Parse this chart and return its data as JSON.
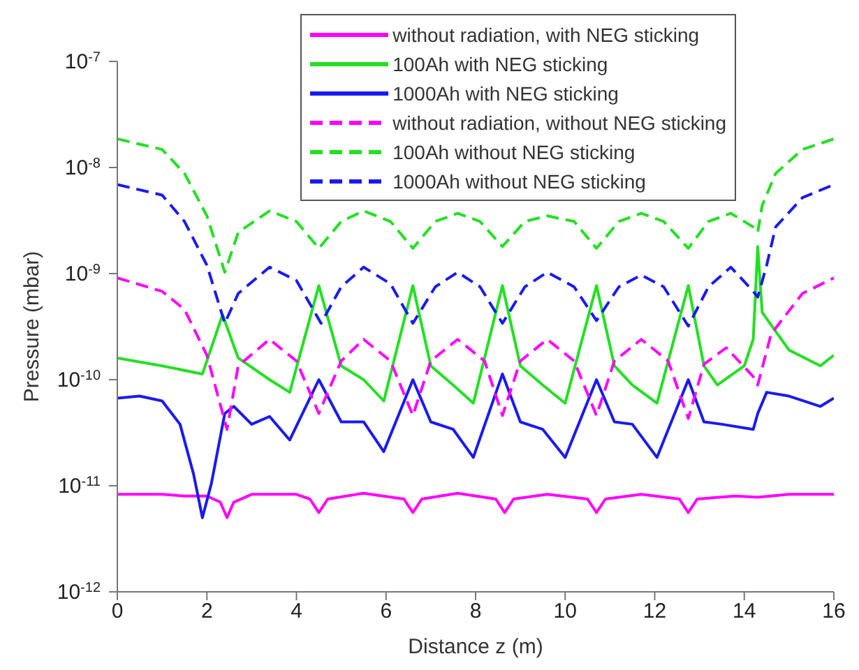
{
  "chart_data": {
    "type": "line",
    "xlabel": "Distance z (m)",
    "ylabel": "Pressure (mbar)",
    "log": "y",
    "legend": "top right",
    "xlim": [
      0,
      16
    ],
    "xticks": [
      0,
      2,
      4,
      6,
      8,
      10,
      12,
      14,
      16
    ],
    "ylim": [
      1e-12,
      1e-07
    ],
    "yticks": [
      {
        "value": 1e-12,
        "label": "10$^{-12}$"
      },
      {
        "value": 1e-11,
        "label": "10$^{-11}$"
      },
      {
        "value": 1e-10,
        "label": "10$^{-10}$"
      },
      {
        "value": 1e-09,
        "label": "10$^{-9}$"
      },
      {
        "value": 1e-08,
        "label": "10$^{-8}$"
      },
      {
        "value": 1e-07,
        "label": "10$^{-7}$"
      }
    ],
    "series": [
      {
        "name": "without radiation, with NEG sticking",
        "color": "#ff00ff",
        "line_style": "solid",
        "x": [
          0,
          1,
          1.5,
          2.0,
          2.3,
          2.45,
          2.6,
          3,
          4,
          4.3,
          4.5,
          4.7,
          5.5,
          6.4,
          6.6,
          6.8,
          7.6,
          8.45,
          8.65,
          8.85,
          9.6,
          10.5,
          10.7,
          10.9,
          11.7,
          12.55,
          12.75,
          12.95,
          13.8,
          14.3,
          15,
          16
        ],
        "values": [
          8.3e-12,
          8.3e-12,
          8e-12,
          8e-12,
          7e-12,
          5e-12,
          7e-12,
          8.3e-12,
          8.3e-12,
          7.5e-12,
          5.6e-12,
          7.5e-12,
          8.5e-12,
          7.5e-12,
          5.6e-12,
          7.5e-12,
          8.5e-12,
          7.5e-12,
          5.6e-12,
          7.5e-12,
          8.3e-12,
          7.5e-12,
          5.6e-12,
          7.5e-12,
          8.3e-12,
          7.5e-12,
          5.6e-12,
          7.5e-12,
          8e-12,
          7.8e-12,
          8.3e-12,
          8.3e-12
        ]
      },
      {
        "name": "100Ah with NEG sticking",
        "color": "#22e022",
        "line_style": "solid",
        "x": [
          0,
          1,
          1.9,
          2.35,
          2.7,
          3.4,
          3.85,
          4.5,
          5,
          5.5,
          5.95,
          6.6,
          7,
          7.5,
          7.95,
          8.6,
          9,
          9.5,
          10,
          10.7,
          11.1,
          11.5,
          12.05,
          12.75,
          13.1,
          13.4,
          14,
          14.2,
          14.3,
          14.4,
          15,
          15.7,
          16
        ],
        "values": [
          1.6e-10,
          1.35e-10,
          1.13e-10,
          4.1e-10,
          1.6e-10,
          1e-10,
          7.6e-11,
          7.7e-10,
          1.35e-10,
          1e-10,
          6.3e-11,
          7.7e-10,
          1.35e-10,
          8.9e-11,
          6e-11,
          7.7e-10,
          1.35e-10,
          8.9e-11,
          6e-11,
          7.7e-10,
          1.35e-10,
          8.9e-11,
          6e-11,
          7.7e-10,
          1.35e-10,
          8.9e-11,
          1.35e-10,
          2.4e-10,
          1.8e-09,
          4.3e-10,
          1.9e-10,
          1.35e-10,
          1.7e-10
        ]
      },
      {
        "name": "1000Ah with NEG sticking",
        "color": "#1a1af0",
        "line_style": "solid",
        "x": [
          0,
          0.5,
          1,
          1.4,
          1.7,
          1.9,
          2.1,
          2.4,
          2.6,
          3,
          3.4,
          3.85,
          4.5,
          5,
          5.5,
          5.95,
          6.6,
          7,
          7.5,
          7.95,
          8.6,
          9,
          9.5,
          10,
          10.7,
          11.1,
          11.5,
          12.05,
          12.75,
          13.1,
          13.5,
          14.2,
          14.3,
          14.5,
          15,
          15.7,
          16
        ],
        "values": [
          6.7e-11,
          7e-11,
          6.3e-11,
          3.8e-11,
          1.3e-11,
          5e-12,
          1.05e-11,
          4.8e-11,
          5.6e-11,
          3.8e-11,
          4.5e-11,
          2.7e-11,
          1e-10,
          4e-11,
          4e-11,
          2.1e-11,
          1e-10,
          4e-11,
          3.4e-11,
          1.85e-11,
          1.13e-10,
          4e-11,
          3.4e-11,
          1.85e-11,
          1e-10,
          4e-11,
          3.8e-11,
          1.85e-11,
          1e-10,
          4e-11,
          3.8e-11,
          3.4e-11,
          4.8e-11,
          7.6e-11,
          7e-11,
          5.6e-11,
          6.7e-11
        ]
      },
      {
        "name": "without radiation, without NEG sticking",
        "color": "#ff00ff",
        "line_style": "dashed",
        "x": [
          0,
          1,
          1.5,
          2,
          2.45,
          2.7,
          3.4,
          4,
          4.5,
          5,
          5.5,
          6.1,
          6.6,
          7,
          7.6,
          8.2,
          8.6,
          9,
          9.6,
          10.2,
          10.7,
          11.1,
          11.7,
          12.3,
          12.75,
          13.1,
          13.6,
          14.2,
          14.3,
          14.6,
          15.3,
          16
        ],
        "values": [
          9.1e-10,
          6.8e-10,
          4.6e-10,
          1.7e-10,
          3.4e-11,
          1.35e-10,
          2.4e-10,
          1.5e-10,
          4.8e-11,
          1.5e-10,
          2.4e-10,
          1.5e-10,
          4.6e-11,
          1.5e-10,
          2.4e-10,
          1.5e-10,
          4.6e-11,
          1.5e-10,
          2.4e-10,
          1.5e-10,
          4.6e-11,
          1.5e-10,
          2.4e-10,
          1.5e-10,
          4.3e-11,
          1.4e-10,
          2e-10,
          1.07e-10,
          8.9e-11,
          2.7e-10,
          6.5e-10,
          9.1e-10
        ]
      },
      {
        "name": "100Ah without NEG sticking",
        "color": "#22e022",
        "line_style": "dashed",
        "x": [
          0,
          1,
          1.5,
          2,
          2.4,
          2.7,
          3.4,
          4,
          4.5,
          5,
          5.5,
          6.1,
          6.6,
          7.1,
          7.6,
          8.1,
          8.6,
          9.1,
          9.6,
          10.2,
          10.7,
          11.2,
          11.7,
          12.2,
          12.75,
          13.2,
          13.7,
          14.2,
          14.3,
          14.4,
          14.7,
          15.3,
          16
        ],
        "values": [
          1.86e-08,
          1.48e-08,
          8.8e-09,
          3.5e-09,
          1.03e-09,
          2.45e-09,
          3.9e-09,
          3.1e-09,
          1.73e-09,
          3.1e-09,
          3.9e-09,
          3.1e-09,
          1.73e-09,
          3.1e-09,
          3.7e-09,
          3.1e-09,
          1.8e-09,
          3.1e-09,
          3.5e-09,
          3.1e-09,
          1.73e-09,
          3.1e-09,
          3.7e-09,
          3.1e-09,
          1.73e-09,
          3.1e-09,
          3.7e-09,
          2.75e-09,
          2.45e-09,
          4.4e-09,
          8.8e-09,
          1.48e-08,
          1.86e-08
        ]
      },
      {
        "name": "1000Ah without NEG sticking",
        "color": "#1a1af0",
        "line_style": "dashed",
        "x": [
          0,
          1,
          1.5,
          2,
          2.4,
          2.7,
          3.4,
          4,
          4.55,
          5,
          5.5,
          6.1,
          6.6,
          7.1,
          7.6,
          8.1,
          8.6,
          9.1,
          9.6,
          10.2,
          10.7,
          11.2,
          11.7,
          12.2,
          12.75,
          13.2,
          13.7,
          14.2,
          14.3,
          14.5,
          14.7,
          15.3,
          16
        ],
        "values": [
          6.9e-09,
          5.5e-09,
          3.1e-09,
          1.2e-09,
          3.4e-10,
          6.5e-10,
          1.15e-09,
          8.6e-10,
          3.4e-10,
          7.5e-10,
          1.15e-09,
          8e-10,
          3.4e-10,
          7.5e-10,
          1.03e-09,
          7.5e-10,
          3.4e-10,
          7.5e-10,
          1.03e-09,
          7.5e-10,
          3.6e-10,
          7.5e-10,
          9.7e-10,
          7.5e-10,
          3.2e-10,
          7.5e-10,
          1.15e-09,
          6.8e-10,
          6e-10,
          1.2e-09,
          2.75e-09,
          5.2e-09,
          6.9e-09
        ]
      }
    ]
  }
}
